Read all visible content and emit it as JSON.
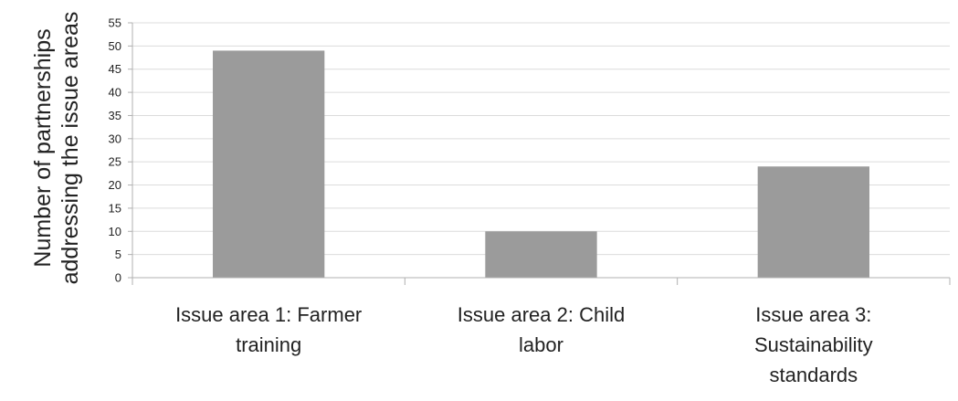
{
  "chart_data": {
    "type": "bar",
    "title": "",
    "xlabel": "",
    "ylabel_lines": [
      "Number of partnerships",
      "addressing the issue areas"
    ],
    "categories": [
      [
        "Issue area 1: Farmer",
        "training"
      ],
      [
        "Issue area 2: Child",
        "labor"
      ],
      [
        "Issue area 3:",
        "Sustainability",
        "standards"
      ]
    ],
    "values": [
      49,
      10,
      24
    ],
    "ylim": [
      0,
      55
    ],
    "yticks": [
      0,
      5,
      10,
      15,
      20,
      25,
      30,
      35,
      40,
      45,
      50,
      55
    ],
    "grid": true,
    "legend": "none",
    "colors": {
      "bar": "#9b9b9b",
      "grid": "#dcdcdc",
      "axis": "#b0b0b0",
      "text": "#222222"
    }
  }
}
